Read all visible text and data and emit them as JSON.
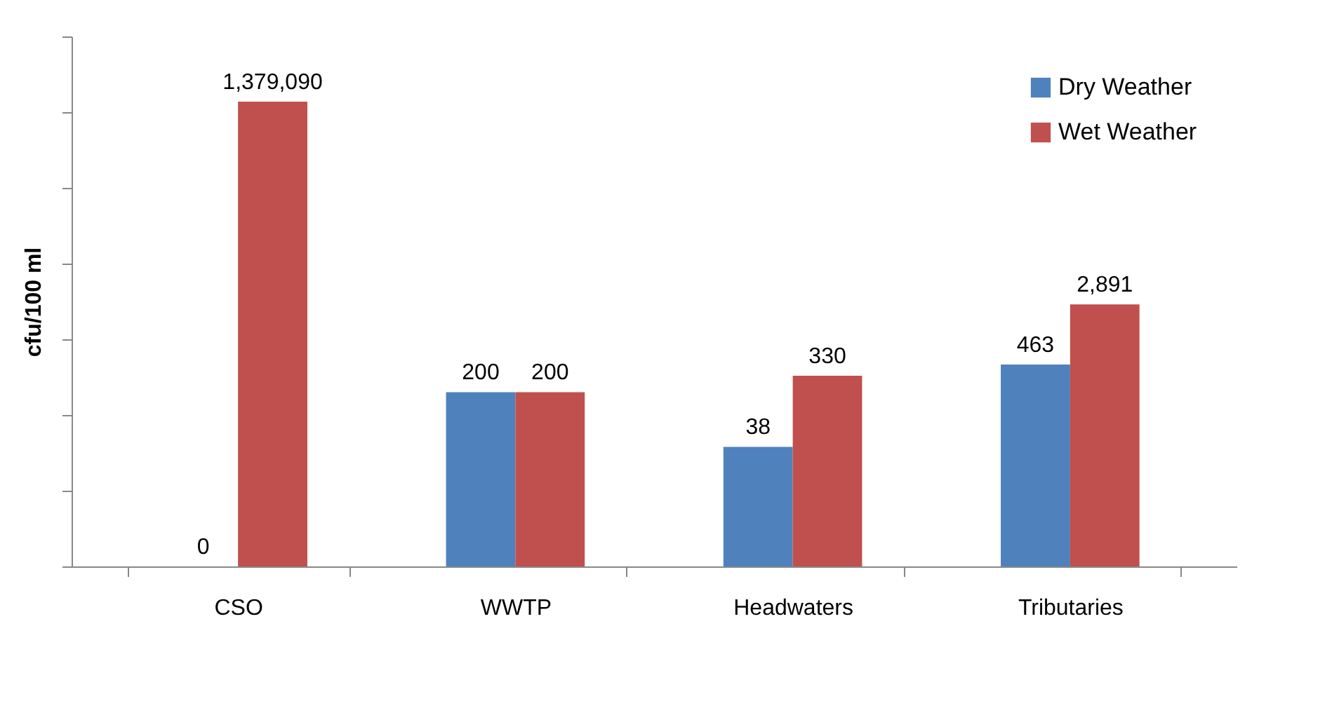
{
  "chart_data": {
    "type": "bar",
    "ylabel": "cfu/100 ml",
    "categories": [
      "CSO",
      "WWTP",
      "Headwaters",
      "Tributaries"
    ],
    "series": [
      {
        "name": "Dry Weather",
        "color": "#4f81bd",
        "values": [
          null,
          200,
          38,
          463
        ],
        "value_labels": [
          "0",
          "200",
          "38",
          "463"
        ]
      },
      {
        "name": "Wet Weather",
        "color": "#c0504d",
        "values": [
          1379090,
          200,
          330,
          2891
        ],
        "value_labels": [
          "1,379,090",
          "200",
          "330",
          "2,891"
        ]
      }
    ],
    "log": "y",
    "ylim": [
      1,
      10000000
    ],
    "yticks": [
      {
        "value": 1,
        "label": null
      },
      {
        "value": 10,
        "label": null
      },
      {
        "value": 100,
        "label": null
      },
      {
        "value": 1000,
        "label": null
      },
      {
        "value": 10000,
        "label": null
      },
      {
        "value": 100000,
        "label": null
      },
      {
        "value": 1000000,
        "label": null
      },
      {
        "value": 10000000,
        "label": null
      }
    ],
    "tick_labels": "x",
    "legend": "top right",
    "grid": false
  }
}
